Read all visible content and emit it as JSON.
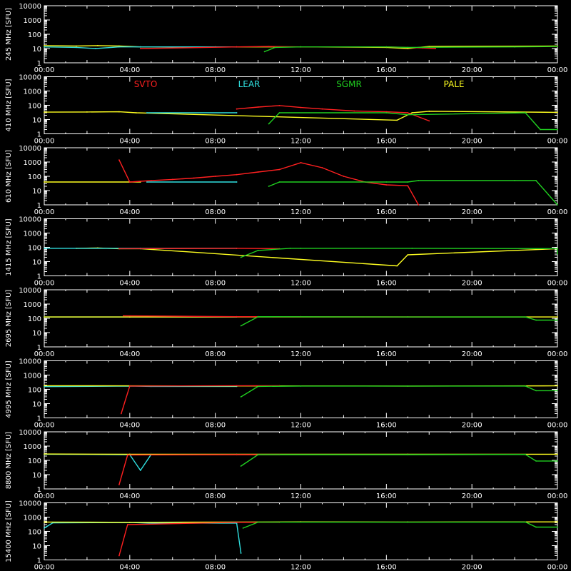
{
  "colors": {
    "background": "#000000",
    "axis": "#ffffff",
    "svto": "#ff2020",
    "lear": "#30e0e0",
    "sgmr": "#20d020",
    "pale": "#ffff20"
  },
  "chart_data": {
    "type": "line",
    "ylabel_unit": "[SFU]",
    "x_tick_labels": [
      "00:00",
      "04:00",
      "08:00",
      "12:00",
      "16:00",
      "20:00",
      "00:00"
    ],
    "x_range_hours": [
      0,
      24
    ],
    "y_scale": "log",
    "y_range_sfu": [
      1,
      10000
    ],
    "y_tick_labels": [
      "1",
      "10",
      "100",
      "1000",
      "10000"
    ],
    "legend": [
      {
        "name": "SVTO",
        "color": "#ff2020"
      },
      {
        "name": "LEAR",
        "color": "#30e0e0"
      },
      {
        "name": "SGMR",
        "color": "#20d020"
      },
      {
        "name": "PALE",
        "color": "#ffff20"
      }
    ],
    "panels": [
      {
        "label": "245 MHz",
        "series": [
          {
            "name": "PALE",
            "points": [
              [
                0,
                16
              ],
              [
                1.5,
                15
              ],
              [
                2.5,
                16
              ],
              [
                3.5,
                15
              ],
              [
                4.5,
                13
              ],
              [
                8,
                13
              ],
              [
                12,
                13
              ],
              [
                16,
                12
              ],
              [
                17,
                10
              ],
              [
                18,
                14
              ],
              [
                24,
                15
              ]
            ]
          },
          {
            "name": "LEAR",
            "points": [
              [
                0,
                13
              ],
              [
                1.5,
                12
              ],
              [
                2.4,
                10
              ],
              [
                3.5,
                13
              ],
              [
                4.5,
                13
              ],
              [
                9,
                13
              ]
            ]
          },
          {
            "name": "SVTO",
            "points": [
              [
                4.5,
                10
              ],
              [
                9,
                13
              ],
              [
                10.5,
                14
              ],
              [
                12,
                13
              ],
              [
                16,
                13
              ],
              [
                17.7,
                11
              ],
              [
                18.3,
                10
              ]
            ]
          },
          {
            "name": "SGMR",
            "points": [
              [
                10.3,
                6
              ],
              [
                10.8,
                12
              ],
              [
                12,
                13
              ],
              [
                16,
                13
              ],
              [
                17,
                12
              ],
              [
                22,
                13
              ],
              [
                24,
                14
              ]
            ]
          }
        ]
      },
      {
        "label": "410 MHz",
        "series": [
          {
            "name": "PALE",
            "points": [
              [
                0,
                33
              ],
              [
                2,
                34
              ],
              [
                3.5,
                35
              ],
              [
                4.3,
                30
              ],
              [
                16.5,
                9
              ],
              [
                17.2,
                30
              ],
              [
                18,
                38
              ],
              [
                24,
                32
              ]
            ]
          },
          {
            "name": "LEAR",
            "points": [
              [
                4.8,
                30
              ],
              [
                9,
                30
              ]
            ]
          },
          {
            "name": "SVTO",
            "points": [
              [
                9,
                55
              ],
              [
                10,
                75
              ],
              [
                11,
                95
              ],
              [
                12,
                70
              ],
              [
                13,
                55
              ],
              [
                14.5,
                40
              ],
              [
                16,
                35
              ],
              [
                17,
                30
              ],
              [
                18,
                8
              ]
            ]
          },
          {
            "name": "SGMR",
            "points": [
              [
                10.5,
                5
              ],
              [
                11,
                30
              ],
              [
                16,
                30
              ],
              [
                17,
                22
              ],
              [
                22.5,
                30
              ],
              [
                23.2,
                2
              ],
              [
                24,
                2
              ]
            ]
          }
        ]
      },
      {
        "label": "610 MHz",
        "series": [
          {
            "name": "PALE",
            "points": [
              [
                0,
                40
              ],
              [
                4,
                40
              ],
              [
                4.5,
                40
              ]
            ]
          },
          {
            "name": "LEAR",
            "points": [
              [
                4.8,
                40
              ],
              [
                9,
                40
              ]
            ]
          },
          {
            "name": "SVTO",
            "points": [
              [
                3.5,
                1400
              ],
              [
                4,
                40
              ],
              [
                5,
                50
              ],
              [
                6,
                60
              ],
              [
                7,
                75
              ],
              [
                8,
                100
              ],
              [
                9,
                130
              ],
              [
                10,
                200
              ],
              [
                11,
                300
              ],
              [
                12,
                900
              ],
              [
                13,
                400
              ],
              [
                14,
                100
              ],
              [
                15,
                40
              ],
              [
                16,
                25
              ],
              [
                17,
                22
              ],
              [
                17.5,
                1
              ]
            ]
          },
          {
            "name": "SGMR",
            "points": [
              [
                10.5,
                20
              ],
              [
                11,
                40
              ],
              [
                16,
                40
              ],
              [
                17,
                40
              ],
              [
                17.5,
                50
              ],
              [
                22,
                50
              ],
              [
                23,
                50
              ],
              [
                24,
                1
              ]
            ]
          }
        ]
      },
      {
        "label": "1415 MHz",
        "series": [
          {
            "name": "PALE",
            "points": [
              [
                1.5,
                85
              ],
              [
                2.5,
                90
              ],
              [
                3.5,
                80
              ],
              [
                4.5,
                80
              ],
              [
                16.5,
                5
              ],
              [
                17,
                30
              ],
              [
                24,
                80
              ]
            ]
          },
          {
            "name": "LEAR",
            "points": [
              [
                0,
                85
              ],
              [
                4.5,
                85
              ],
              [
                9,
                85
              ]
            ]
          },
          {
            "name": "SVTO",
            "points": [
              [
                3.5,
                80
              ],
              [
                9,
                85
              ],
              [
                11,
                80
              ]
            ]
          },
          {
            "name": "SGMR",
            "points": [
              [
                9.2,
                20
              ],
              [
                10,
                60
              ],
              [
                11.5,
                85
              ],
              [
                12,
                85
              ],
              [
                17.2,
                85
              ],
              [
                24,
                80
              ],
              [
                24,
                35
              ]
            ]
          }
        ]
      },
      {
        "label": "2695 MHz",
        "series": [
          {
            "name": "LEAR",
            "points": [
              [
                0,
                125
              ],
              [
                4,
                125
              ],
              [
                9,
                125
              ]
            ]
          },
          {
            "name": "PALE",
            "points": [
              [
                0,
                125
              ],
              [
                4,
                125
              ],
              [
                17,
                125
              ],
              [
                24,
                125
              ]
            ]
          },
          {
            "name": "SVTO",
            "points": [
              [
                3.7,
                150
              ],
              [
                9,
                130
              ],
              [
                12,
                130
              ],
              [
                17,
                125
              ],
              [
                18,
                125
              ]
            ]
          },
          {
            "name": "SGMR",
            "points": [
              [
                9.2,
                30
              ],
              [
                10,
                130
              ],
              [
                17,
                125
              ],
              [
                22.5,
                125
              ],
              [
                23,
                75
              ],
              [
                24,
                75
              ]
            ]
          }
        ]
      },
      {
        "label": "4995 MHz",
        "series": [
          {
            "name": "LEAR",
            "points": [
              [
                0,
                155
              ],
              [
                4,
                170
              ],
              [
                5,
                160
              ],
              [
                9,
                160
              ]
            ]
          },
          {
            "name": "PALE",
            "points": [
              [
                0,
                180
              ],
              [
                4,
                175
              ],
              [
                17,
                170
              ],
              [
                24,
                175
              ]
            ]
          },
          {
            "name": "SVTO",
            "points": [
              [
                3.6,
                2
              ],
              [
                4,
                170
              ],
              [
                9,
                180
              ],
              [
                11,
                180
              ]
            ]
          },
          {
            "name": "SGMR",
            "points": [
              [
                9.2,
                30
              ],
              [
                10,
                160
              ],
              [
                12,
                170
              ],
              [
                17,
                170
              ],
              [
                22.5,
                170
              ],
              [
                23,
                80
              ],
              [
                24,
                80
              ]
            ]
          }
        ]
      },
      {
        "label": "8800 MHz",
        "series": [
          {
            "name": "LEAR",
            "points": [
              [
                0,
                270
              ],
              [
                4,
                250
              ],
              [
                4.5,
                20
              ],
              [
                5,
                260
              ],
              [
                9,
                260
              ]
            ]
          },
          {
            "name": "PALE",
            "points": [
              [
                0,
                280
              ],
              [
                4,
                270
              ],
              [
                17,
                265
              ],
              [
                24,
                270
              ]
            ]
          },
          {
            "name": "SVTO",
            "points": [
              [
                3.5,
                2
              ],
              [
                3.9,
                240
              ],
              [
                9,
                250
              ],
              [
                11,
                250
              ]
            ]
          },
          {
            "name": "SGMR",
            "points": [
              [
                9.2,
                40
              ],
              [
                10,
                250
              ],
              [
                17,
                250
              ],
              [
                22.5,
                260
              ],
              [
                23,
                90
              ],
              [
                24,
                90
              ]
            ]
          }
        ]
      },
      {
        "label": "15400 MHz",
        "series": [
          {
            "name": "LEAR",
            "points": [
              [
                0,
                170
              ],
              [
                0.4,
                400
              ],
              [
                4,
                420
              ],
              [
                5,
                380
              ],
              [
                9,
                380
              ],
              [
                9.2,
                3
              ]
            ]
          },
          {
            "name": "PALE",
            "points": [
              [
                0,
                450
              ],
              [
                4,
                430
              ],
              [
                12,
                460
              ],
              [
                17,
                450
              ],
              [
                24,
                460
              ]
            ]
          },
          {
            "name": "SVTO",
            "points": [
              [
                3.5,
                2
              ],
              [
                3.9,
                300
              ],
              [
                9,
                430
              ],
              [
                11,
                430
              ]
            ]
          },
          {
            "name": "SGMR",
            "points": [
              [
                9.3,
                170
              ],
              [
                10,
                440
              ],
              [
                17,
                440
              ],
              [
                22.5,
                450
              ],
              [
                23,
                200
              ],
              [
                24,
                200
              ]
            ]
          }
        ]
      }
    ]
  }
}
